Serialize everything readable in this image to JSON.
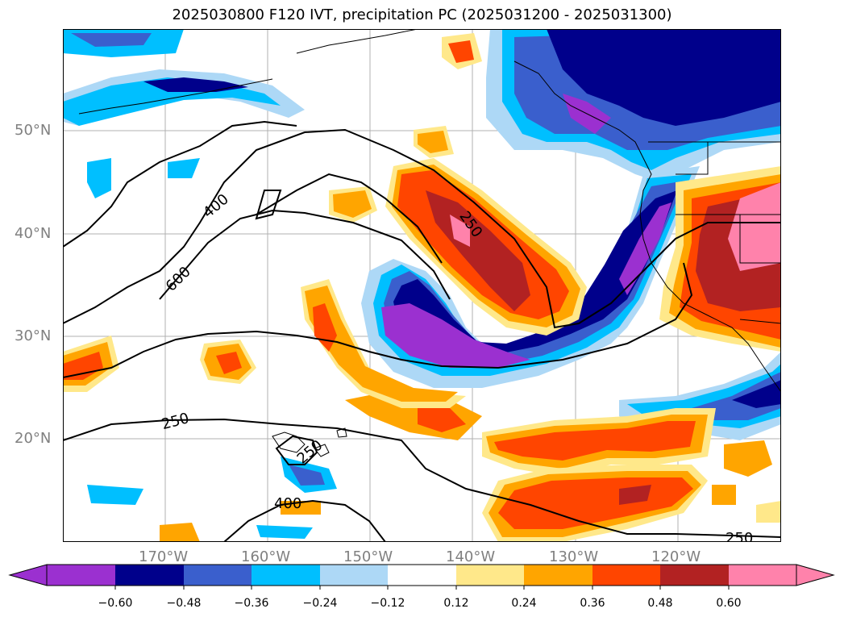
{
  "title": "2025030800 F120 IVT, precipitation PC (2025031200 - 2025031300)",
  "map": {
    "lon_labels": [
      "170°W",
      "160°W",
      "150°W",
      "140°W",
      "130°W",
      "120°W"
    ],
    "lat_labels": [
      "20°N",
      "30°N",
      "40°N",
      "50°N"
    ],
    "contour_labels": [
      "400",
      "600",
      "250",
      "250",
      "250",
      "400",
      "250"
    ]
  },
  "colorbar": {
    "tick_labels": [
      "−0.60",
      "−0.48",
      "−0.36",
      "−0.24",
      "−0.12",
      "0.12",
      "0.24",
      "0.36",
      "0.48",
      "0.60"
    ],
    "colors": [
      "#9b30d0",
      "#00008b",
      "#3a5fcd",
      "#00bfff",
      "#add8f6",
      "#ffffff",
      "#ffe88a",
      "#ffa500",
      "#ff4500",
      "#b22222",
      "#ff82ab"
    ]
  }
}
